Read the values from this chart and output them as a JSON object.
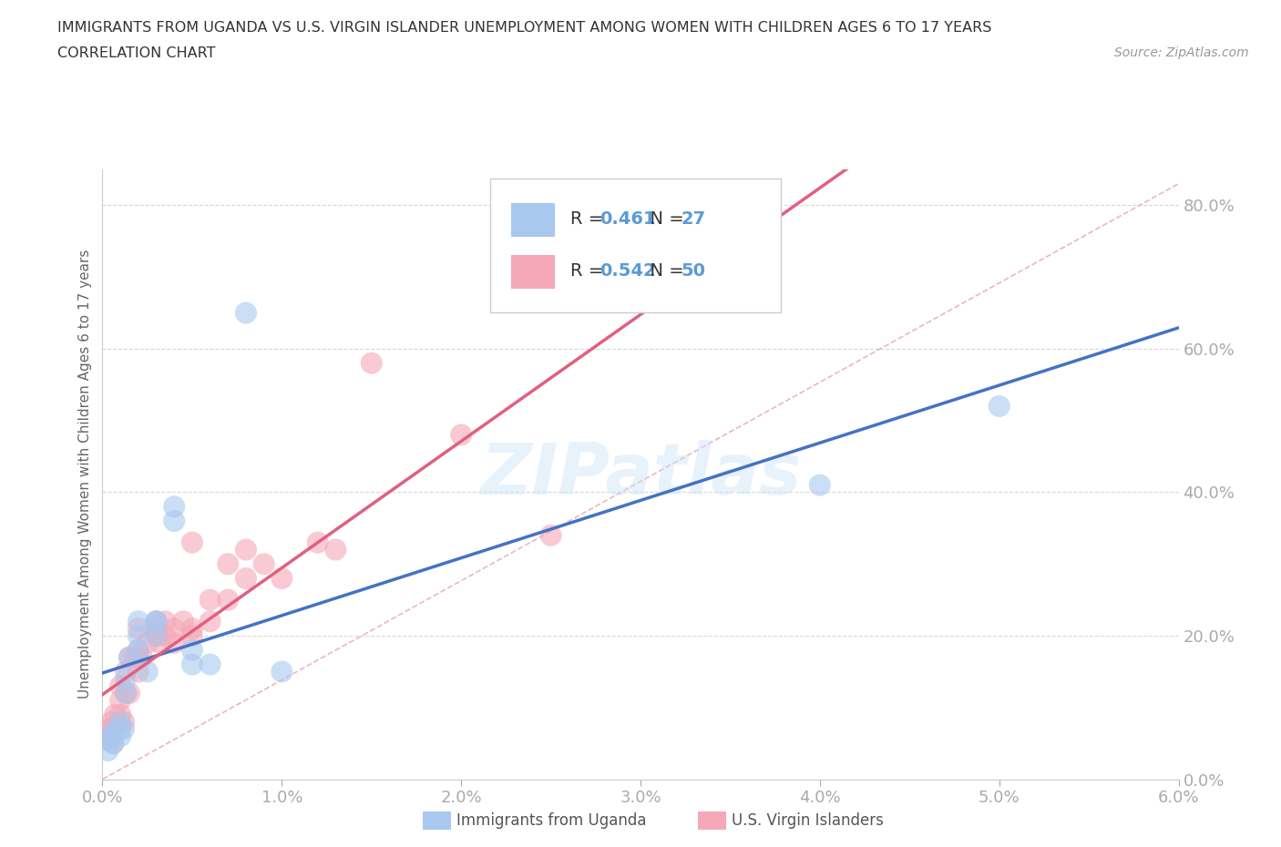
{
  "title_line1": "IMMIGRANTS FROM UGANDA VS U.S. VIRGIN ISLANDER UNEMPLOYMENT AMONG WOMEN WITH CHILDREN AGES 6 TO 17 YEARS",
  "title_line2": "CORRELATION CHART",
  "source": "Source: ZipAtlas.com",
  "ylabel_label": "Unemployment Among Women with Children Ages 6 to 17 years",
  "xlim": [
    0.0,
    0.06
  ],
  "ylim": [
    0.0,
    0.85
  ],
  "xtick_vals": [
    0.0,
    0.01,
    0.02,
    0.03,
    0.04,
    0.05,
    0.06
  ],
  "xtick_labels": [
    "0.0%",
    "1.0%",
    "2.0%",
    "3.0%",
    "4.0%",
    "5.0%",
    "6.0%"
  ],
  "ytick_vals": [
    0.0,
    0.2,
    0.4,
    0.6,
    0.8
  ],
  "ytick_labels": [
    "0.0%",
    "20.0%",
    "40.0%",
    "60.0%",
    "80.0%"
  ],
  "r_uganda": 0.461,
  "n_uganda": 27,
  "r_virgin": 0.542,
  "n_virgin": 50,
  "color_uganda_scatter": "#a8c8f0",
  "color_virgin_scatter": "#f5a8b8",
  "color_uganda_line": "#4472c4",
  "color_virgin_line": "#e06080",
  "color_diagonal": "#e8b0b8",
  "tick_color": "#5b9bd5",
  "grid_color": "#d8d8d8",
  "background_color": "#ffffff",
  "watermark": "ZIPatlas",
  "legend_label_uganda": "Immigrants from Uganda",
  "legend_label_virgin": "U.S. Virgin Islanders",
  "uganda_scatter_x": [
    0.0003,
    0.0003,
    0.0005,
    0.0006,
    0.0008,
    0.001,
    0.001,
    0.0012,
    0.0013,
    0.0013,
    0.0015,
    0.002,
    0.002,
    0.002,
    0.0025,
    0.003,
    0.003,
    0.003,
    0.004,
    0.004,
    0.005,
    0.005,
    0.006,
    0.008,
    0.01,
    0.04,
    0.05
  ],
  "uganda_scatter_y": [
    0.06,
    0.04,
    0.055,
    0.05,
    0.07,
    0.08,
    0.06,
    0.07,
    0.14,
    0.12,
    0.17,
    0.18,
    0.2,
    0.22,
    0.15,
    0.22,
    0.2,
    0.22,
    0.36,
    0.38,
    0.18,
    0.16,
    0.16,
    0.65,
    0.15,
    0.41,
    0.52
  ],
  "virgin_scatter_x": [
    0.0002,
    0.0002,
    0.0003,
    0.0005,
    0.0005,
    0.0005,
    0.0006,
    0.0007,
    0.001,
    0.001,
    0.001,
    0.001,
    0.0012,
    0.0013,
    0.0013,
    0.0015,
    0.0015,
    0.0018,
    0.002,
    0.002,
    0.002,
    0.002,
    0.0022,
    0.0025,
    0.003,
    0.003,
    0.003,
    0.003,
    0.0032,
    0.0035,
    0.0035,
    0.004,
    0.004,
    0.0045,
    0.005,
    0.005,
    0.005,
    0.006,
    0.006,
    0.007,
    0.007,
    0.008,
    0.008,
    0.009,
    0.01,
    0.012,
    0.013,
    0.015,
    0.02,
    0.025
  ],
  "virgin_scatter_y": [
    0.055,
    0.07,
    0.06,
    0.08,
    0.06,
    0.07,
    0.05,
    0.09,
    0.07,
    0.09,
    0.11,
    0.13,
    0.08,
    0.12,
    0.15,
    0.12,
    0.17,
    0.17,
    0.15,
    0.17,
    0.18,
    0.21,
    0.17,
    0.19,
    0.2,
    0.2,
    0.21,
    0.22,
    0.19,
    0.2,
    0.22,
    0.19,
    0.21,
    0.22,
    0.2,
    0.21,
    0.33,
    0.22,
    0.25,
    0.25,
    0.3,
    0.28,
    0.32,
    0.3,
    0.28,
    0.33,
    0.32,
    0.58,
    0.48,
    0.34
  ]
}
